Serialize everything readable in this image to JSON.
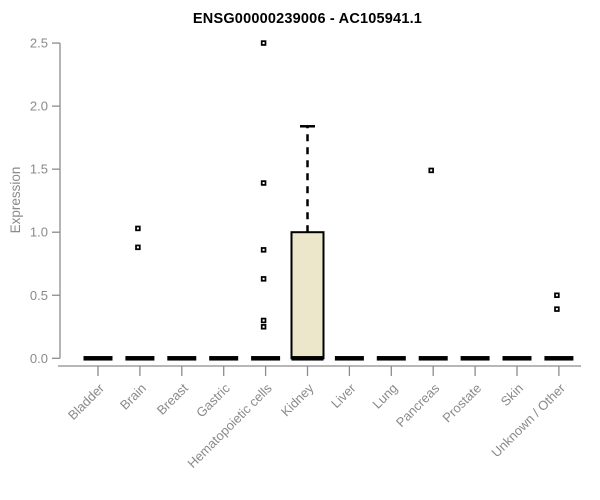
{
  "chart_data": {
    "type": "boxplot",
    "title": "ENSG00000239006 - AC105941.1",
    "ylabel": "Expression",
    "xlabel": "",
    "ylim": [
      0,
      2.5
    ],
    "yticks": [
      0,
      0.5,
      1,
      1.5,
      2,
      2.5
    ],
    "ytick_labels": [
      "0.0",
      "0.5",
      "1.0",
      "1.5",
      "2.0",
      "2.5"
    ],
    "grid": false,
    "legend": false,
    "categories": [
      "Bladder",
      "Brain",
      "Breast",
      "Gastric",
      "Hematopoietic cells",
      "Kidney",
      "Liver",
      "Lung",
      "Pancreas",
      "Prostate",
      "Skin",
      "Unknown / Other"
    ],
    "boxes": [
      {
        "category": "Bladder",
        "median": 0,
        "q1": 0,
        "q3": 0,
        "whisker_low": 0,
        "whisker_high": 0,
        "outliers": []
      },
      {
        "category": "Brain",
        "median": 0,
        "q1": 0,
        "q3": 0,
        "whisker_low": 0,
        "whisker_high": 0,
        "outliers": [
          1.03,
          0.88
        ]
      },
      {
        "category": "Breast",
        "median": 0,
        "q1": 0,
        "q3": 0,
        "whisker_low": 0,
        "whisker_high": 0,
        "outliers": []
      },
      {
        "category": "Gastric",
        "median": 0,
        "q1": 0,
        "q3": 0,
        "whisker_low": 0,
        "whisker_high": 0,
        "outliers": []
      },
      {
        "category": "Hematopoietic cells",
        "median": 0,
        "q1": 0,
        "q3": 0,
        "whisker_low": 0,
        "whisker_high": 0,
        "outliers": [
          2.5,
          1.39,
          0.86,
          0.63,
          0.3,
          0.25
        ]
      },
      {
        "category": "Kidney",
        "median": 0,
        "q1": 0,
        "q3": 1.0,
        "whisker_low": 0,
        "whisker_high": 1.84,
        "outliers": []
      },
      {
        "category": "Liver",
        "median": 0,
        "q1": 0,
        "q3": 0,
        "whisker_low": 0,
        "whisker_high": 0,
        "outliers": []
      },
      {
        "category": "Lung",
        "median": 0,
        "q1": 0,
        "q3": 0,
        "whisker_low": 0,
        "whisker_high": 0,
        "outliers": []
      },
      {
        "category": "Pancreas",
        "median": 0,
        "q1": 0,
        "q3": 0,
        "whisker_low": 0,
        "whisker_high": 0,
        "outliers": [
          1.49
        ]
      },
      {
        "category": "Prostate",
        "median": 0,
        "q1": 0,
        "q3": 0,
        "whisker_low": 0,
        "whisker_high": 0,
        "outliers": []
      },
      {
        "category": "Skin",
        "median": 0,
        "q1": 0,
        "q3": 0,
        "whisker_low": 0,
        "whisker_high": 0,
        "outliers": []
      },
      {
        "category": "Unknown / Other",
        "median": 0,
        "q1": 0,
        "q3": 0,
        "whisker_low": 0,
        "whisker_high": 0,
        "outliers": [
          0.5,
          0.39
        ]
      }
    ],
    "colors": {
      "background": "#ffffff",
      "box_fill": "#ece7cb",
      "box_stroke": "#000000",
      "median": "#000000",
      "whisker": "#000000",
      "outlier": "#000000",
      "axis": "#8c8c8c",
      "tick_text": "#8a8a8a",
      "title": "#000000"
    }
  }
}
